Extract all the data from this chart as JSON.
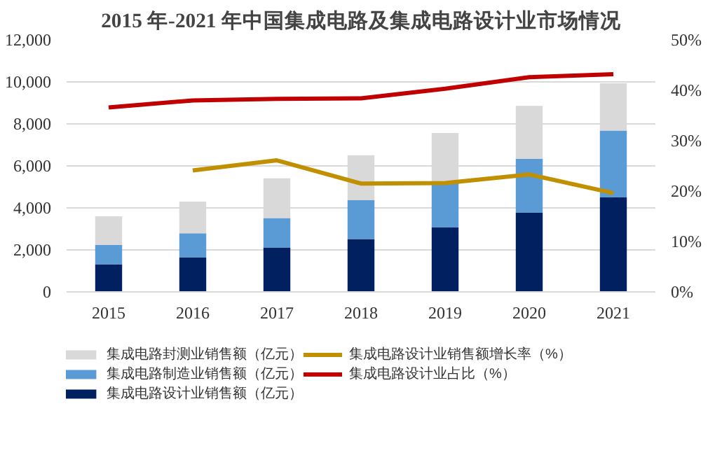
{
  "chart_data": {
    "type": "bar",
    "title": "2015 年-2021 年中国集成电路及集成电路设计业市场情况",
    "categories": [
      "2015",
      "2016",
      "2017",
      "2018",
      "2019",
      "2020",
      "2021"
    ],
    "stacked": true,
    "ylim": [
      0,
      12000
    ],
    "yticks": [
      {
        "value": 0,
        "label": "0"
      },
      {
        "value": 2000,
        "label": "2,000"
      },
      {
        "value": 4000,
        "label": "4,000"
      },
      {
        "value": 6000,
        "label": "6,000"
      },
      {
        "value": 8000,
        "label": "8,000"
      },
      {
        "value": 10000,
        "label": "10,000"
      },
      {
        "value": 12000,
        "label": "12,000"
      }
    ],
    "y2lim": [
      0,
      50
    ],
    "y2ticks": [
      {
        "value": 0,
        "label": "0%"
      },
      {
        "value": 10,
        "label": "10%"
      },
      {
        "value": 20,
        "label": "20%"
      },
      {
        "value": 30,
        "label": "30%"
      },
      {
        "value": 40,
        "label": "40%"
      },
      {
        "value": 50,
        "label": "50%"
      }
    ],
    "grid": "y",
    "legend": "bottom",
    "series": [
      {
        "name": "集成电路设计业销售额（亿元）",
        "color": "#002060",
        "values": [
          1320,
          1650,
          2100,
          2520,
          3070,
          3780,
          4500
        ]
      },
      {
        "name": "集成电路制造业销售额（亿元）",
        "color": "#5b9bd5",
        "values": [
          920,
          1140,
          1420,
          1850,
          2180,
          2560,
          3180
        ]
      },
      {
        "name": "集成电路封测业销售额（亿元）",
        "color": "#d9d9d9",
        "values": [
          1360,
          1510,
          1890,
          2140,
          2320,
          2520,
          2250
        ]
      },
      {
        "name": "集成电路设计业销售额增长率（%）",
        "type": "line",
        "axis": "y2",
        "color": "#c09000",
        "values": [
          null,
          24.1,
          26.1,
          21.5,
          21.6,
          23.3,
          19.6
        ]
      },
      {
        "name": "集成电路设计业占比（%）",
        "type": "line",
        "axis": "y2",
        "color": "#c00000",
        "values": [
          36.6,
          38.0,
          38.3,
          38.4,
          40.3,
          42.6,
          43.2
        ]
      }
    ]
  }
}
